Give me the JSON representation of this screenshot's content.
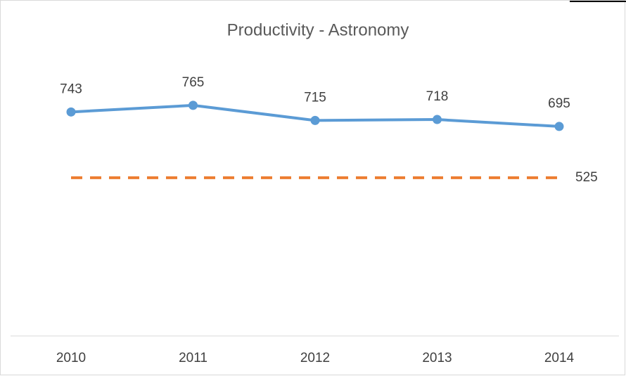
{
  "chart_data": {
    "type": "line",
    "title": "Productivity - Astronomy",
    "categories": [
      "2010",
      "2011",
      "2012",
      "2013",
      "2014"
    ],
    "series": [
      {
        "color": "#5b9bd5",
        "dashed": false,
        "markers": true,
        "labels": "all",
        "values": [
          743,
          765,
          715,
          718,
          695
        ]
      },
      {
        "color": "#ed7d31",
        "dashed": true,
        "markers": false,
        "labels": "last",
        "values": [
          525,
          525,
          525,
          525,
          525
        ]
      }
    ],
    "ylim": [
      0,
      900
    ]
  }
}
